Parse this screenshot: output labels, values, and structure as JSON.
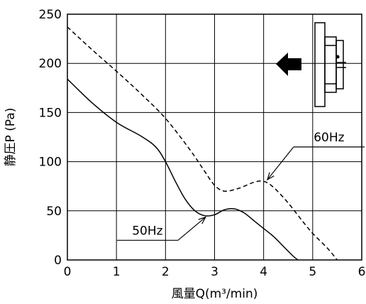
{
  "chart_data": {
    "type": "line",
    "xlabel": "風量Q(m³/min)",
    "ylabel": "静圧P (Pa)",
    "xlim": [
      0,
      6
    ],
    "ylim": [
      0,
      250
    ],
    "xticks": [
      "0",
      "1",
      "2",
      "3",
      "4",
      "5",
      "6"
    ],
    "yticks": [
      "0",
      "50",
      "100",
      "150",
      "200",
      "250"
    ],
    "grid": true,
    "series": [
      {
        "name": "50Hz",
        "style": "solid",
        "x": [
          0,
          0.5,
          1.0,
          1.5,
          1.8,
          2.0,
          2.2,
          2.4,
          2.6,
          2.8,
          3.0,
          3.2,
          3.4,
          3.6,
          3.8,
          4.0,
          4.2,
          4.4,
          4.6,
          4.7
        ],
        "y": [
          184,
          160,
          140,
          126,
          115,
          100,
          80,
          62,
          50,
          45,
          46,
          51,
          52,
          48,
          40,
          32,
          24,
          14,
          4,
          0
        ]
      },
      {
        "name": "60Hz",
        "style": "dashed",
        "x": [
          0,
          0.5,
          1.0,
          1.5,
          2.0,
          2.5,
          2.8,
          3.0,
          3.2,
          3.5,
          3.8,
          4.0,
          4.2,
          4.5,
          4.8,
          5.0,
          5.3,
          5.5
        ],
        "y": [
          237,
          214,
          192,
          169,
          144,
          112,
          90,
          76,
          70,
          73,
          79,
          80,
          74,
          58,
          39,
          27,
          12,
          0
        ]
      }
    ],
    "annotations": [
      {
        "text": "60Hz",
        "series": "60Hz",
        "point": [
          4.05,
          80
        ],
        "label_at": [
          4.9,
          115
        ]
      },
      {
        "text": "50Hz",
        "series": "50Hz",
        "point": [
          2.85,
          45
        ],
        "label_at": [
          1.3,
          20
        ]
      }
    ]
  }
}
